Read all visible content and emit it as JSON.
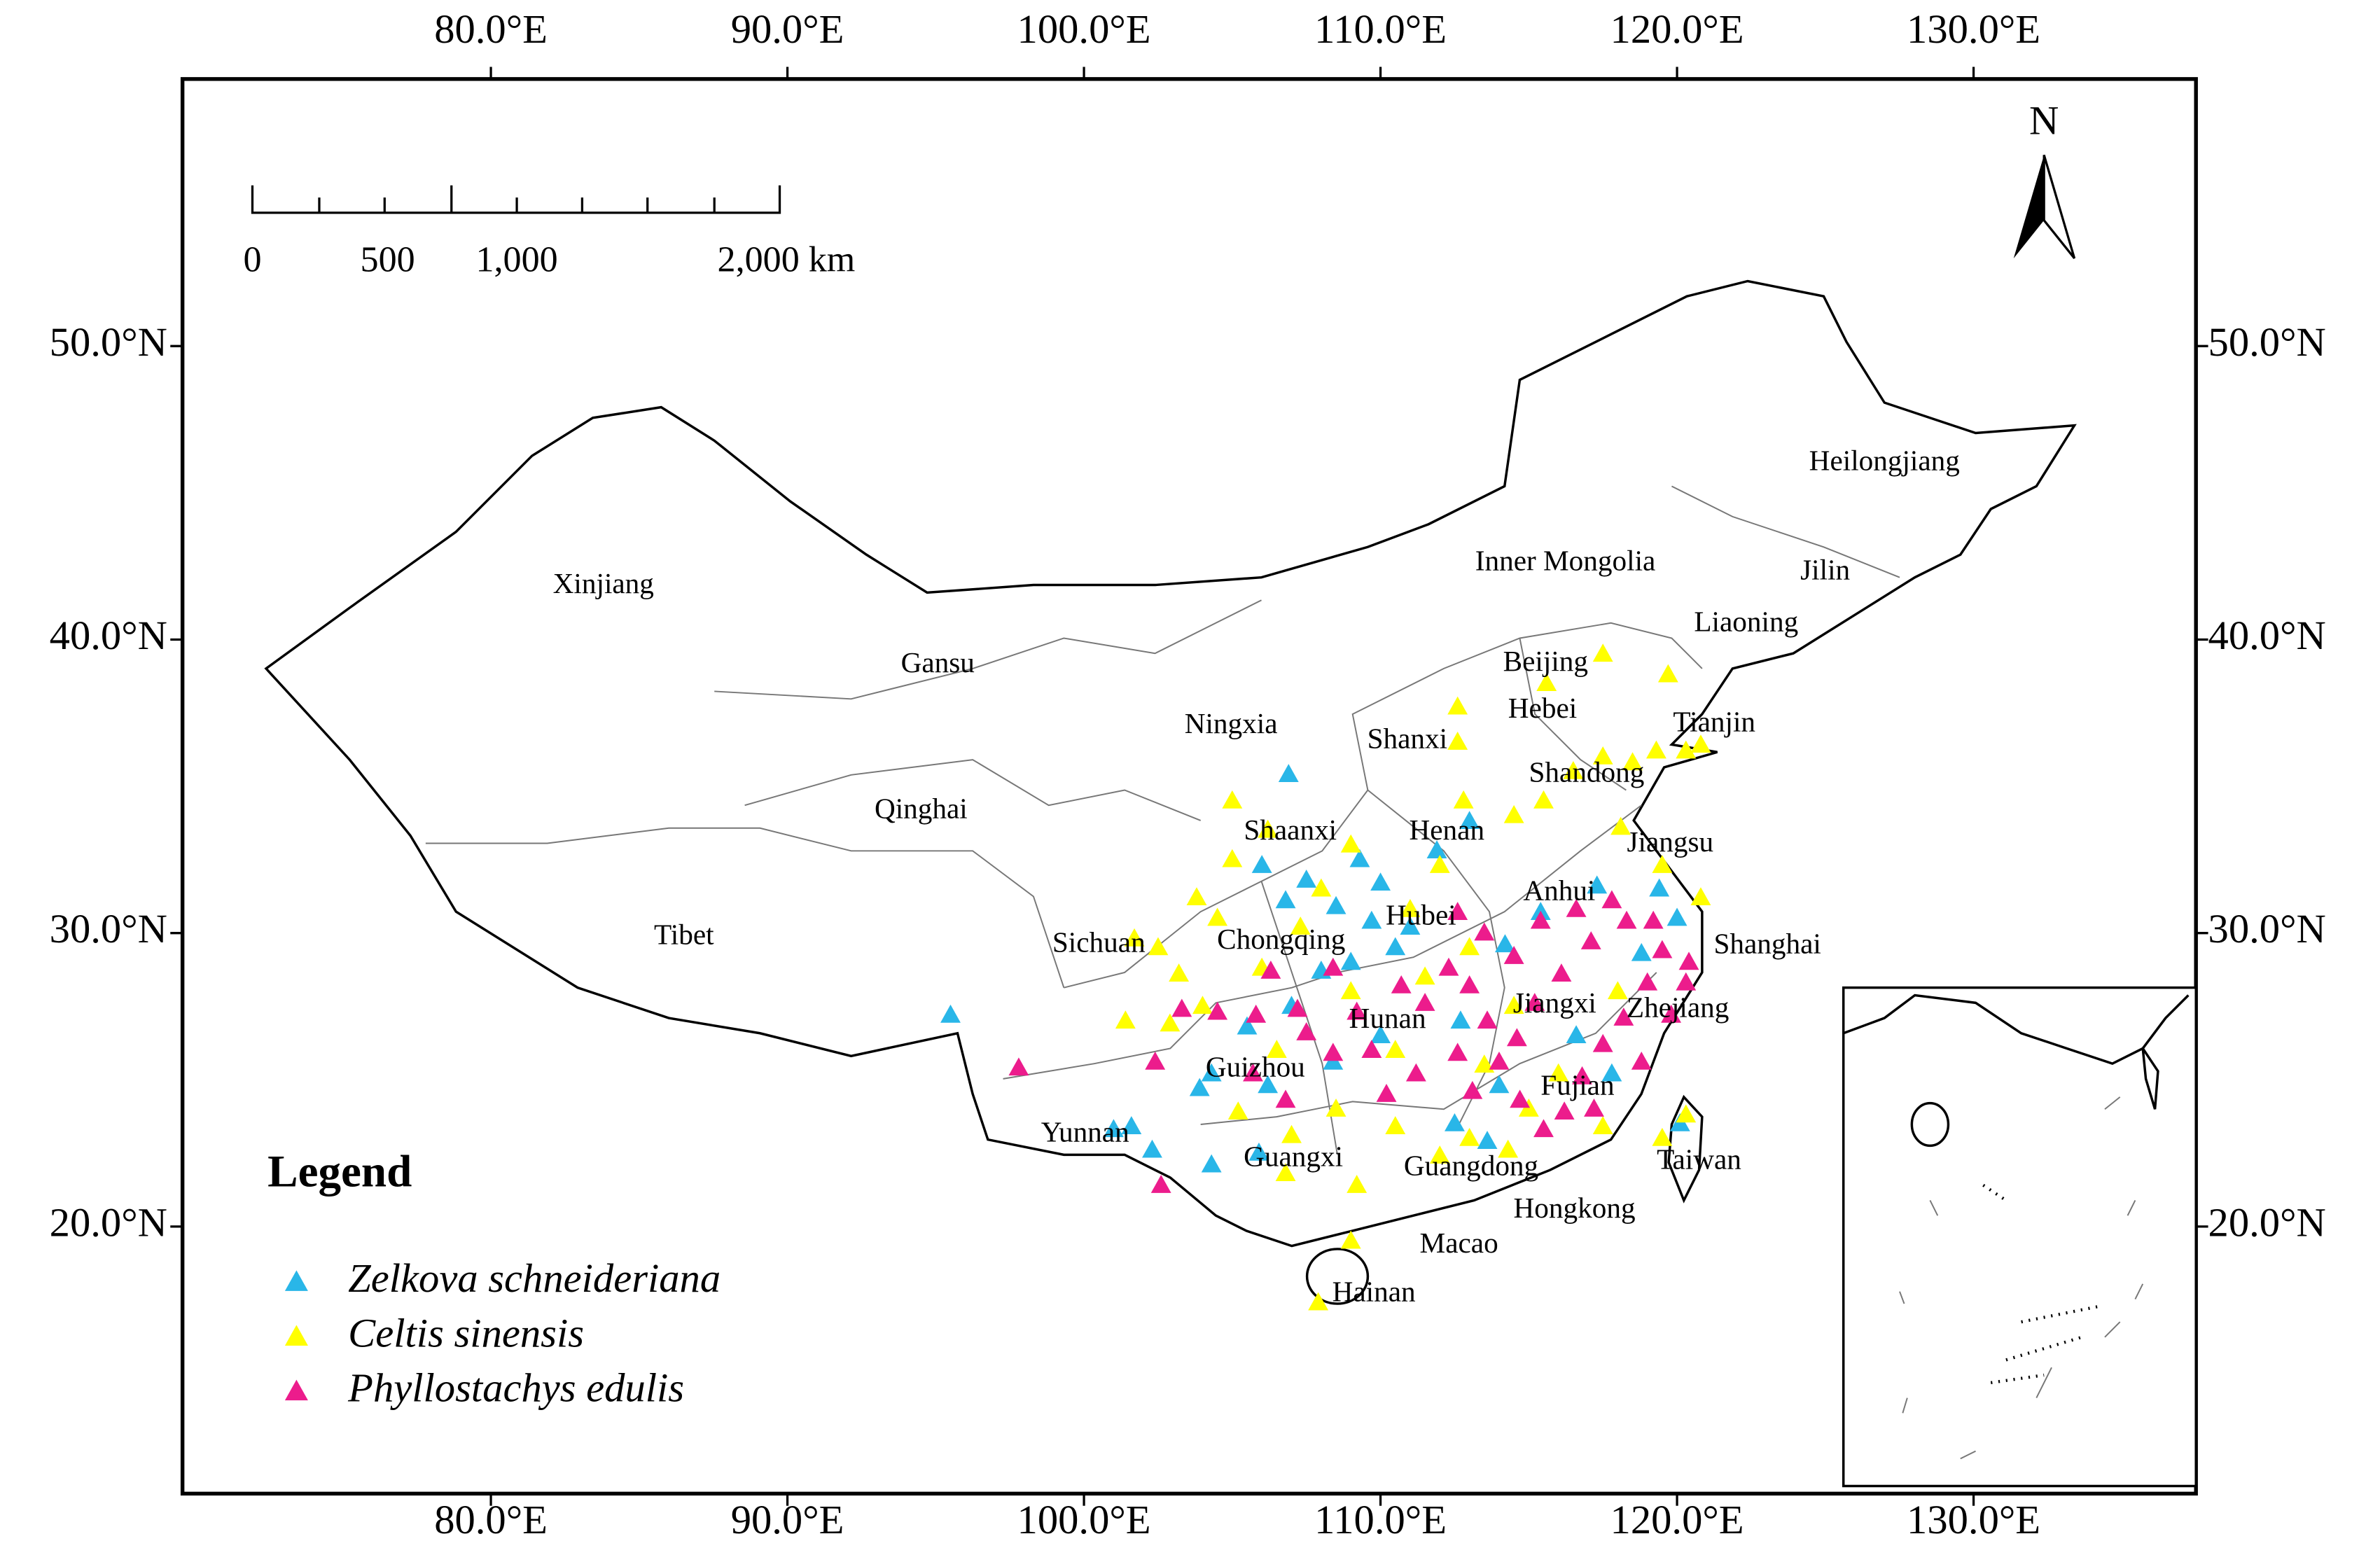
{
  "chart_data": {
    "type": "scatter",
    "xlim": [
      69.6,
      137.5
    ],
    "ylim": [
      10.9,
      59.1
    ],
    "xticks": [
      {
        "value": 80,
        "label": "80.0°E"
      },
      {
        "value": 90,
        "label": "90.0°E"
      },
      {
        "value": 100,
        "label": "100.0°E"
      },
      {
        "value": 110,
        "label": "110.0°E"
      },
      {
        "value": 120,
        "label": "120.0°E"
      },
      {
        "value": 130,
        "label": "130.0°E"
      }
    ],
    "yticks": [
      {
        "value": 20,
        "label": "20.0°N"
      },
      {
        "value": 30,
        "label": "30.0°N"
      },
      {
        "value": 40,
        "label": "40.0°N"
      },
      {
        "value": 50,
        "label": "50.0°N"
      }
    ],
    "legend_title": "Legend",
    "north": "N",
    "scale_bar": [
      "0",
      "500",
      "1,000",
      "2,000 km"
    ],
    "provinces": [
      "Xinjiang",
      "Gansu",
      "Ningxia",
      "Qinghai",
      "Tibet",
      "Sichuan",
      "Chongqing",
      "Shaanxi",
      "Shanxi",
      "Henan",
      "Hubei",
      "Hunan",
      "Guizhou",
      "Yunnan",
      "Guangxi",
      "Guangdong",
      "Hongkong",
      "Macao",
      "Hainan",
      "Taiwan",
      "Fujian",
      "Jiangxi",
      "Zhejiang",
      "Shanghai",
      "Anhui",
      "Jiangsu",
      "Shandong",
      "Tianjin",
      "Hebei",
      "Beijing",
      "Liaoning",
      "Jilin",
      "Inner Mongolia",
      "Heilongjiang"
    ],
    "series": [
      {
        "name": "Zelkova schneideriana",
        "color": "#29b6e8",
        "x": [
          95.5,
          101,
          101.6,
          102.3,
          104.3,
          105.9,
          106,
          106.9,
          107.5,
          108.5,
          109.3,
          110,
          110.5,
          111,
          109,
          108,
          107,
          105.5,
          104.3,
          106.2,
          108.4,
          110,
          111.9,
          113,
          112.7,
          114.2,
          115.4,
          117.3,
          119.4,
          120,
          118.8,
          116.6,
          117.8,
          114,
          112.5,
          120.1,
          106.8,
          103.9,
          109.7,
          113.6
        ],
        "values": [
          27.2,
          23.3,
          23.4,
          22.6,
          22.1,
          22.5,
          32.3,
          35.4,
          31.8,
          30.9,
          32.5,
          31.7,
          29.5,
          30.2,
          29,
          28.7,
          27.5,
          26.8,
          25.2,
          24.8,
          25.6,
          26.5,
          32.8,
          33.8,
          27,
          29.6,
          30.7,
          31.6,
          31.5,
          30.5,
          29.3,
          26.5,
          25.2,
          24.8,
          23.5,
          23.5,
          31.1,
          24.7,
          30.4,
          22.9
        ]
      },
      {
        "name": "Celtis sinensis",
        "color": "#ffff00",
        "x": [
          102.5,
          101.7,
          103.2,
          102.9,
          101.4,
          103.8,
          105,
          106.2,
          105,
          108,
          107.3,
          109,
          106.5,
          105.2,
          107,
          108.5,
          106.8,
          109.2,
          109,
          107.9,
          110.5,
          112,
          113,
          114.3,
          112,
          112.8,
          112.6,
          112.6,
          114.5,
          115.5,
          116.5,
          117.5,
          118.5,
          119.3,
          120.3,
          120.8,
          115.6,
          117.5,
          119.7,
          118.1,
          119.5,
          120.8,
          118,
          116,
          115,
          117.5,
          119.5,
          120.3,
          110.5,
          111.5,
          113,
          114.5,
          113.5,
          104,
          106,
          111,
          109,
          104.5
        ],
        "values": [
          29.5,
          29.8,
          28.6,
          26.9,
          27,
          31.2,
          32.5,
          33.5,
          34.5,
          31.5,
          30.2,
          28,
          26,
          23.9,
          23.1,
          24,
          21.8,
          21.4,
          19.5,
          17.4,
          23.4,
          22.4,
          23,
          22.6,
          32.3,
          34.5,
          36.5,
          37.7,
          34,
          34.5,
          35.5,
          36,
          35.8,
          36.2,
          36.2,
          36.4,
          38.5,
          39.5,
          38.8,
          33.6,
          32.3,
          31.2,
          28,
          25.2,
          24,
          23.4,
          23,
          23.8,
          26,
          28.5,
          29.5,
          27.5,
          25.5,
          27.5,
          28.8,
          30.8,
          33,
          30.5
        ]
      },
      {
        "name": "Phyllostachys edulis",
        "color": "#ec1c8c",
        "x": [
          97.8,
          102.6,
          102.4,
          103.3,
          104.5,
          105.8,
          107.2,
          106.3,
          107.5,
          108.4,
          109.2,
          110.2,
          111.2,
          111.5,
          112.3,
          113,
          113.6,
          114,
          114.7,
          115.5,
          116.2,
          116.8,
          117.5,
          118.2,
          119,
          119.5,
          118.3,
          117.1,
          116.1,
          115.2,
          114.6,
          113.5,
          114.5,
          115.4,
          116.6,
          117.8,
          119.2,
          120.4,
          118.8,
          117.2,
          113.1,
          112.6,
          110.7,
          109.7,
          106.8,
          105.7,
          108.4,
          119.8,
          120.3,
          112.6
        ],
        "values": [
          25.4,
          21.4,
          25.6,
          27.4,
          27.3,
          27.2,
          27.4,
          28.7,
          26.6,
          25.9,
          27.3,
          24.5,
          25.2,
          27.6,
          28.8,
          28.2,
          27,
          25.6,
          24.3,
          23.3,
          23.9,
          25.1,
          26.2,
          27.1,
          28.3,
          29.4,
          30.4,
          29.7,
          28.6,
          27.6,
          26.4,
          30,
          29.2,
          30.4,
          30.8,
          31.1,
          30.4,
          29,
          25.6,
          24,
          24.6,
          25.9,
          28.2,
          26,
          24.3,
          25.2,
          28.8,
          27.2,
          28.3,
          30.7
        ]
      }
    ]
  }
}
